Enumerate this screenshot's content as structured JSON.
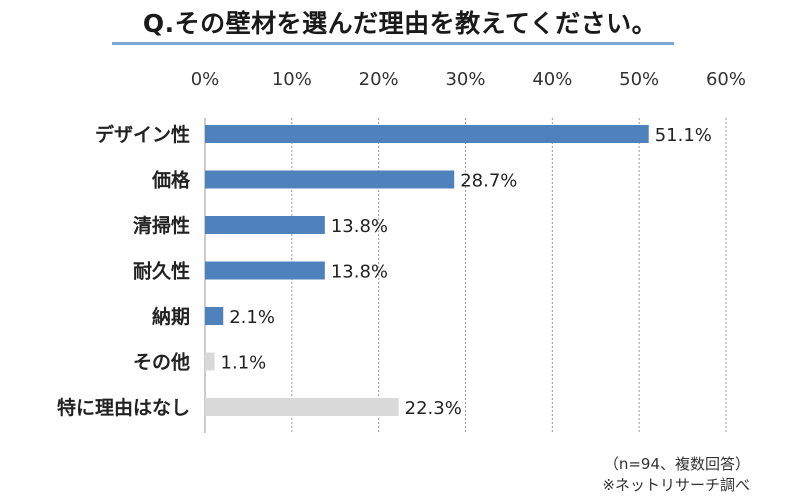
{
  "title": "Q.その壁材を選んだ理由を教えてください。",
  "notes": {
    "sample": "（n=94、複数回答）",
    "source": "※ネットリサーチ調べ"
  },
  "colors": {
    "primary_bar": "#4f81bd",
    "secondary_bar": "#d9d9d9",
    "grid": "#999999",
    "title_rule": "#7ea6d6"
  },
  "chart_data": {
    "type": "bar",
    "orientation": "horizontal",
    "title": "Q.その壁材を選んだ理由を教えてください。",
    "xlim": [
      0,
      60
    ],
    "ticks": [
      0,
      10,
      20,
      30,
      40,
      50,
      60
    ],
    "tick_labels": [
      "0%",
      "10%",
      "20%",
      "30%",
      "40%",
      "50%",
      "60%"
    ],
    "x_axis_position": "top",
    "grid": true,
    "legend": "none",
    "categories": [
      "デザイン性",
      "価格",
      "清掃性",
      "耐久性",
      "納期",
      "その他",
      "特に理由はなし"
    ],
    "values": [
      51.1,
      28.7,
      13.8,
      13.8,
      2.1,
      1.1,
      22.3
    ],
    "value_labels": [
      "51.1%",
      "28.7%",
      "13.8%",
      "13.8%",
      "2.1%",
      "1.1%",
      "22.3%"
    ],
    "highlight": [
      true,
      true,
      true,
      true,
      true,
      false,
      false
    ]
  }
}
